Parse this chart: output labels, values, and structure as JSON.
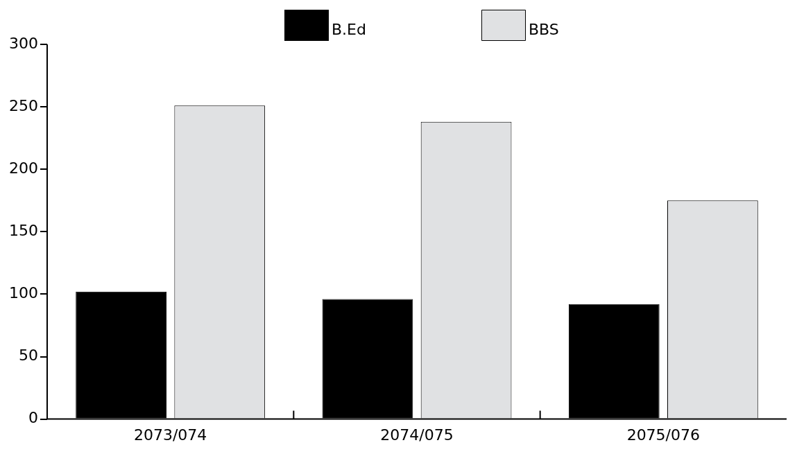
{
  "chart_data": {
    "type": "bar",
    "categories": [
      "2073/074",
      "2074/075",
      "2075/076"
    ],
    "series": [
      {
        "name": "B.Ed",
        "color": "#000000",
        "values": [
          102,
          96,
          92
        ]
      },
      {
        "name": "BBS",
        "color": "#e0e1e3",
        "values": [
          251,
          238,
          175
        ]
      }
    ],
    "ylim": [
      0,
      300
    ],
    "yticks": [
      0,
      50,
      100,
      150,
      200,
      250,
      300
    ],
    "grid": false,
    "legend": "top"
  }
}
